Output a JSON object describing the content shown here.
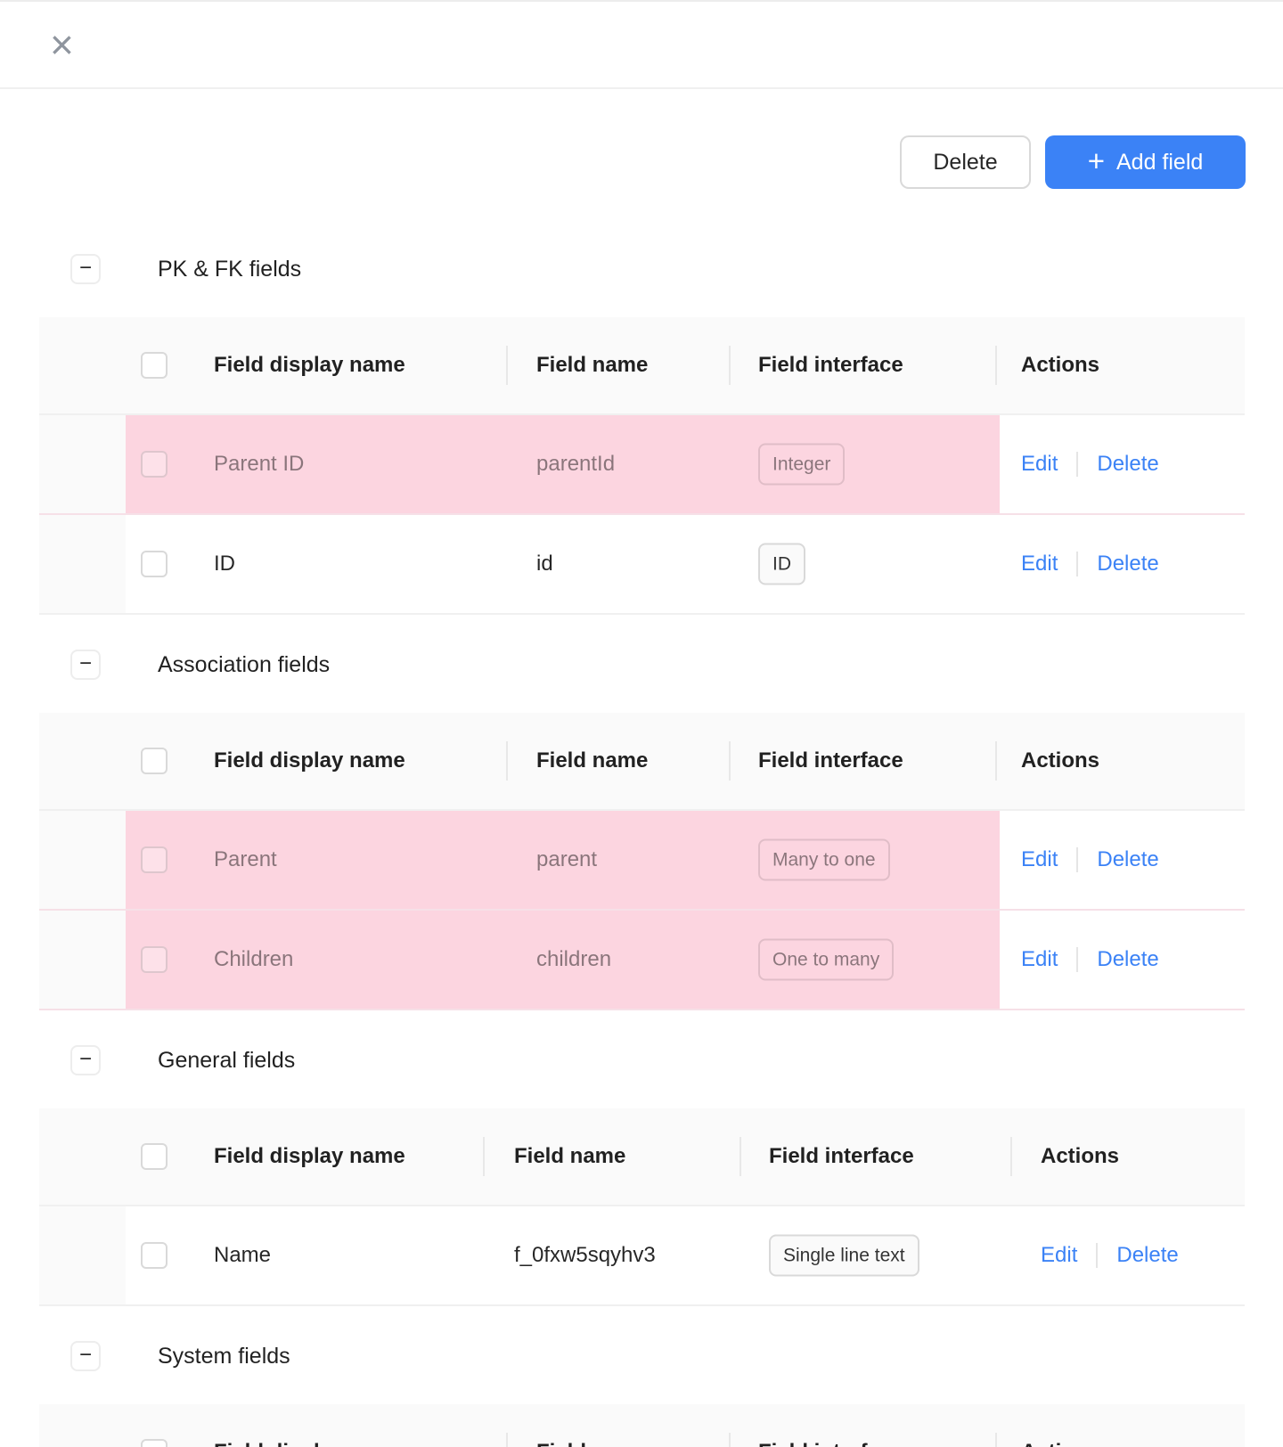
{
  "icons": {
    "close": "×",
    "plus": "+",
    "collapse": "−"
  },
  "toolbar": {
    "delete_label": "Delete",
    "add_field_label": "Add field"
  },
  "table": {
    "columns": [
      "Field display name",
      "Field name",
      "Field interface",
      "Actions"
    ],
    "actions": {
      "edit": "Edit",
      "delete": "Delete"
    }
  },
  "sections": [
    {
      "title": "PK & FK fields",
      "rows": [
        {
          "display_name": "Parent ID",
          "field_name": "parentId",
          "interface": "Integer",
          "highlighted": true
        },
        {
          "display_name": "ID",
          "field_name": "id",
          "interface": "ID",
          "highlighted": false
        }
      ]
    },
    {
      "title": "Association fields",
      "rows": [
        {
          "display_name": "Parent",
          "field_name": "parent",
          "interface": "Many to one",
          "highlighted": true
        },
        {
          "display_name": "Children",
          "field_name": "children",
          "interface": "One to many",
          "highlighted": true
        }
      ]
    },
    {
      "title": "General fields",
      "rows": [
        {
          "display_name": "Name",
          "field_name": "f_0fxw5sqyhv3",
          "interface": "Single line text",
          "highlighted": false
        }
      ]
    },
    {
      "title": "System fields",
      "rows": []
    }
  ],
  "colors": {
    "primary_blue": "#3b82f6",
    "highlight_pink": "#fcd5e0",
    "header_gray": "#fafafa",
    "border_gray": "#f0f0f0"
  }
}
